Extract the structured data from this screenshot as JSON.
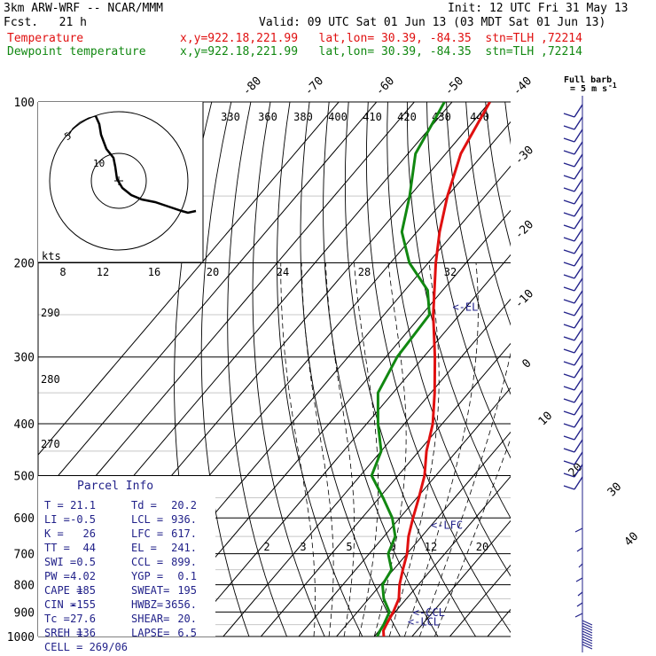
{
  "header": {
    "model": "3km ARW-WRF -- NCAR/MMM",
    "init": "Init: 12 UTC Fri 31 May 13",
    "fcst": "Fcst.   21 h",
    "valid": "Valid: 09 UTC Sat 01 Jun 13 (03 MDT Sat 01 Jun 13)",
    "temp_label": "Temperature",
    "temp_loc": "x,y=922.18,221.99   lat,lon= 30.39, -84.35  stn=TLH ,72214",
    "dew_label": "Dewpoint temperature",
    "dew_loc": "x,y=922.18,221.99   lat,lon= 30.39, -84.35  stn=TLH ,72214"
  },
  "barb_label_1": "Full barb",
  "barb_label_2": "= 5 m s",
  "barb_label_exp": "-1",
  "hodo_units": "kts",
  "hodo_ring_labels": [
    "5",
    "10"
  ],
  "chart_data": {
    "type": "line",
    "pressure_levels": [
      100,
      200,
      300,
      400,
      500,
      600,
      700,
      800,
      900,
      1000
    ],
    "isotherm_labels": [
      -80,
      -70,
      -60,
      -50,
      -40,
      -30,
      -20,
      -10,
      0,
      10,
      20,
      30,
      40
    ],
    "theta_labels": [
      330,
      360,
      380,
      400,
      410,
      420,
      430,
      440
    ],
    "mixing_ratio_labels_top": [
      8,
      12,
      16,
      20,
      24,
      28,
      32
    ],
    "mixing_ratio_labels_bottom": [
      2,
      3,
      5,
      8,
      12,
      20
    ],
    "left_theta_labels": [
      290,
      280,
      270
    ],
    "series": [
      {
        "name": "Temperature",
        "color": "#e01010",
        "points": [
          [
            1000,
            22.5
          ],
          [
            975,
            21.1
          ],
          [
            950,
            20.5
          ],
          [
            925,
            20.0
          ],
          [
            900,
            19.5
          ],
          [
            850,
            18.0
          ],
          [
            800,
            15.0
          ],
          [
            750,
            12.5
          ],
          [
            700,
            10.0
          ],
          [
            650,
            6.5
          ],
          [
            600,
            3.5
          ],
          [
            550,
            0.5
          ],
          [
            500,
            -3.0
          ],
          [
            450,
            -8.0
          ],
          [
            400,
            -12.5
          ],
          [
            350,
            -19.0
          ],
          [
            300,
            -27.0
          ],
          [
            250,
            -37.0
          ],
          [
            200,
            -48.0
          ],
          [
            175,
            -54.0
          ],
          [
            150,
            -60.0
          ],
          [
            125,
            -66.0
          ],
          [
            100,
            -70.0
          ]
        ]
      },
      {
        "name": "Dewpoint temperature",
        "color": "#118811",
        "points": [
          [
            1000,
            20.8
          ],
          [
            975,
            20.2
          ],
          [
            950,
            19.8
          ],
          [
            900,
            18.5
          ],
          [
            850,
            14.0
          ],
          [
            800,
            10.5
          ],
          [
            750,
            9.5
          ],
          [
            700,
            5.0
          ],
          [
            650,
            3.0
          ],
          [
            600,
            -2.0
          ],
          [
            550,
            -9.0
          ],
          [
            500,
            -17.0
          ],
          [
            450,
            -20.0
          ],
          [
            400,
            -27.0
          ],
          [
            350,
            -34.0
          ],
          [
            300,
            -37.0
          ],
          [
            250,
            -38.0
          ],
          [
            225,
            -44.0
          ],
          [
            200,
            -55.0
          ],
          [
            175,
            -64.0
          ],
          [
            150,
            -70.0
          ],
          [
            125,
            -78.0
          ],
          [
            100,
            -82.0
          ]
        ]
      }
    ],
    "markers": [
      {
        "label": "<-EL",
        "p": 241
      },
      {
        "label": "<-LFC",
        "p": 617
      },
      {
        "label": "<-CCL",
        "p": 899
      },
      {
        "label": "<-LCL",
        "p": 936
      }
    ]
  },
  "parcel": {
    "title": "Parcel Info",
    "rows": [
      [
        "T  =",
        "21.1",
        "Td =",
        "20.2"
      ],
      [
        "LI =",
        "-0.5",
        "LCL =",
        "936."
      ],
      [
        "K  =",
        "26",
        "LFC =",
        "617."
      ],
      [
        "TT =",
        "44",
        "EL  =",
        "241."
      ],
      [
        "SWI =",
        "0.5",
        "CCL =",
        "899."
      ],
      [
        "PW =",
        "4.02",
        "YGP =",
        "0.1"
      ],
      [
        "CAPE =",
        "185",
        "SWEAT=",
        "195"
      ],
      [
        "CIN =",
        "-155",
        "HWBZ=",
        "3656."
      ],
      [
        "Tc =",
        "27.6",
        "SHEAR=",
        "20."
      ],
      [
        "SREH =",
        "136",
        "LAPSE=",
        "6.5"
      ]
    ],
    "cell": "CELL = 269/06"
  }
}
